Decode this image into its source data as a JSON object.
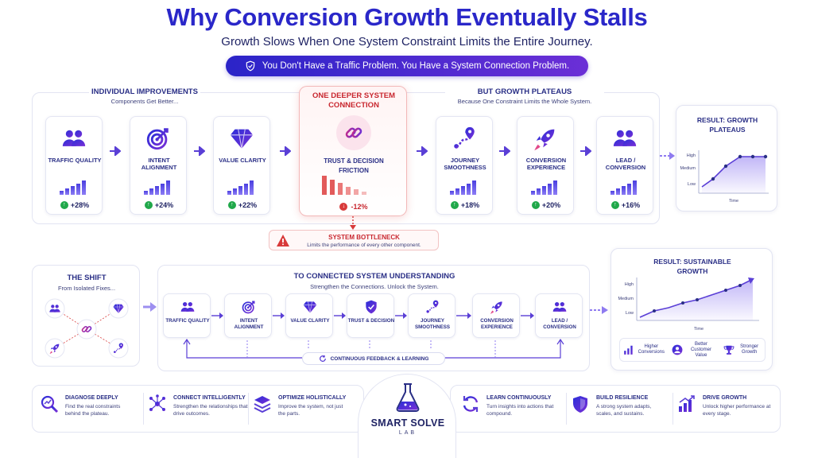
{
  "title": "Why Conversion Growth Eventually Stalls",
  "subtitle": "Growth Slows When One System Constraint Limits the Entire Journey.",
  "banner": "You Don't Have a Traffic Problem. You Have a System Connection Problem.",
  "top": {
    "left_header": "INDIVIDUAL IMPROVEMENTS",
    "left_sub": "Components Get Better...",
    "right_header": "BUT GROWTH PLATEAUS",
    "right_sub": "Because One Constraint Limits the Whole System.",
    "center_header": "ONE DEEPER SYSTEM CONNECTION",
    "center_label": "TRUST & DECISION FRICTION",
    "center_change": "-12%",
    "components": [
      {
        "label": "TRAFFIC QUALITY",
        "change": "+28%",
        "icon": "users-icon"
      },
      {
        "label": "INTENT ALIGNMENT",
        "change": "+24%",
        "icon": "target-icon"
      },
      {
        "label": "VALUE CLARITY",
        "change": "+22%",
        "icon": "diamond-icon"
      },
      {
        "label": "JOURNEY SMOOTHNESS",
        "change": "+18%",
        "icon": "route-icon"
      },
      {
        "label": "CONVERSION EXPERIENCE",
        "change": "+20%",
        "icon": "rocket-icon"
      },
      {
        "label": "LEAD / CONVERSION",
        "change": "+16%",
        "icon": "users-icon"
      }
    ],
    "bottleneck_title": "SYSTEM BOTTLENECK",
    "bottleneck_desc": "Limits the performance of every other component."
  },
  "result_plateau": {
    "title": "RESULT: GROWTH PLATEAUS",
    "levels": [
      "High",
      "Medium",
      "Low"
    ],
    "xlabel": "Time"
  },
  "shift": {
    "title": "THE SHIFT",
    "sub": "From Isolated Fixes..."
  },
  "connected": {
    "title": "TO CONNECTED SYSTEM UNDERSTANDING",
    "sub": "Strengthen the Connections. Unlock the System.",
    "nodes": [
      {
        "label": "TRAFFIC QUALITY"
      },
      {
        "label": "INTENT ALIGNMENT"
      },
      {
        "label": "VALUE CLARITY"
      },
      {
        "label": "TRUST & DECISION"
      },
      {
        "label": "JOURNEY SMOOTHNESS"
      },
      {
        "label": "CONVERSION EXPERIENCE"
      },
      {
        "label": "LEAD / CONVERSION"
      }
    ],
    "feedback": "CONTINUOUS FEEDBACK & LEARNING"
  },
  "result_growth": {
    "title": "RESULT: SUSTAINABLE GROWTH",
    "levels": [
      "High",
      "Medium",
      "Low"
    ],
    "xlabel": "Time",
    "benefits": [
      {
        "label": "Higher Conversions"
      },
      {
        "label": "Better Customer Value"
      },
      {
        "label": "Stronger Growth"
      }
    ]
  },
  "bottom": {
    "items": [
      {
        "title": "DIAGNOSE DEEPLY",
        "desc": "Find the real constraints behind the plateau."
      },
      {
        "title": "CONNECT INTELLIGENTLY",
        "desc": "Strengthen the relationships that drive outcomes."
      },
      {
        "title": "OPTIMIZE HOLISTICALLY",
        "desc": "Improve the system, not just the parts."
      },
      {
        "title": "LEARN CONTINUOUSLY",
        "desc": "Turn insights into actions that compound."
      },
      {
        "title": "BUILD RESILIENCE",
        "desc": "A strong system adapts, scales, and sustains."
      },
      {
        "title": "DRIVE GROWTH",
        "desc": "Unlock higher performance at every stage."
      }
    ],
    "brand": "SMART SOLVE",
    "brand_sub": "LAB"
  },
  "colors": {
    "primary": "#2a27c9",
    "accent": "#6b2fd6",
    "alert": "#d83a3a",
    "positive": "#20a84a"
  }
}
